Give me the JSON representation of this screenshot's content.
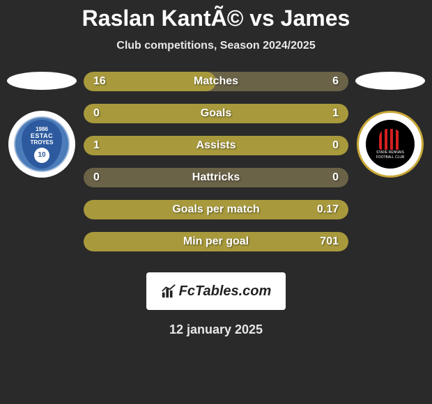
{
  "title": "Raslan KantÃ© vs James",
  "subtitle": "Club competitions, Season 2024/2025",
  "date": "12 january 2025",
  "brand": "FcTables.com",
  "colors": {
    "background": "#2a2a2a",
    "bar_bg": "#6b6348",
    "bar_fill": "#a89a3c",
    "text": "#ffffff"
  },
  "clubs": {
    "left": {
      "id": "troyes",
      "year": "1986",
      "name": "ESTAC",
      "sub": "TROYES",
      "num": "10"
    },
    "right": {
      "id": "rennes",
      "text1": "STADE RENNAIS",
      "text2": "FOOTBALL CLUB"
    }
  },
  "stats": [
    {
      "label": "Matches",
      "left_val": "16",
      "right_val": "6",
      "left_pct": 50,
      "right_pct": 0
    },
    {
      "label": "Goals",
      "left_val": "0",
      "right_val": "1",
      "left_pct": 0,
      "right_pct": 100
    },
    {
      "label": "Assists",
      "left_val": "1",
      "right_val": "0",
      "left_pct": 100,
      "right_pct": 0
    },
    {
      "label": "Hattricks",
      "left_val": "0",
      "right_val": "0",
      "left_pct": 0,
      "right_pct": 0
    },
    {
      "label": "Goals per match",
      "left_val": "",
      "right_val": "0.17",
      "left_pct": 0,
      "right_pct": 100
    },
    {
      "label": "Min per goal",
      "left_val": "",
      "right_val": "701",
      "left_pct": 0,
      "right_pct": 100
    }
  ]
}
